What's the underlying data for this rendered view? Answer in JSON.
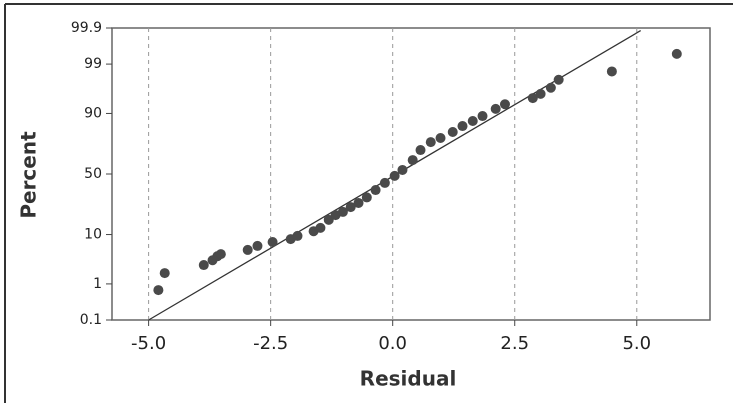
{
  "chart_data": {
    "type": "scatter",
    "x_label": "Residual",
    "y_label": "Percent",
    "yscale": "probability",
    "grid": true,
    "color": "#4a4a4a",
    "x": [
      -4.8,
      -4.67,
      -3.87,
      -3.69,
      -3.59,
      -3.52,
      -2.97,
      -2.77,
      -2.46,
      -2.09,
      -1.95,
      -1.62,
      -1.48,
      -1.31,
      -1.17,
      -1.02,
      -0.86,
      -0.7,
      -0.53,
      -0.35,
      -0.16,
      0.04,
      0.2,
      0.41,
      0.57,
      0.78,
      0.98,
      1.23,
      1.43,
      1.64,
      1.84,
      2.11,
      2.3,
      2.87,
      3.03,
      3.24,
      3.4,
      4.49,
      5.82
    ],
    "values": [
      0.7,
      1.8,
      2.7,
      3.4,
      4.1,
      4.5,
      5.4,
      6.4,
      7.5,
      8.4,
      9.5,
      11.3,
      12.7,
      16.6,
      19.2,
      21.1,
      24.2,
      27,
      31,
      36.7,
      42.5,
      48.4,
      53.4,
      61.6,
      69.4,
      75,
      77.7,
      81.3,
      84.5,
      86.9,
      89,
      91.6,
      93,
      94.6,
      95.5,
      96.6,
      97.7,
      98.5,
      99.45
    ],
    "fit_line": {
      "x": [
        -5,
        5.08
      ],
      "y": [
        0.1,
        99.88
      ],
      "color": "#333333"
    },
    "xlim": [
      -5.75,
      6.5
    ],
    "ylim": [
      0.1,
      99.9
    ],
    "xticks": [
      {
        "value": -5,
        "label": "-5.0"
      },
      {
        "value": -2.5,
        "label": "-2.5"
      },
      {
        "value": 0,
        "label": "0.0"
      },
      2.5,
      {
        "value": 5,
        "label": "5.0"
      }
    ],
    "yticks": [
      0.1,
      1,
      10,
      50,
      90,
      99,
      99.9
    ]
  }
}
